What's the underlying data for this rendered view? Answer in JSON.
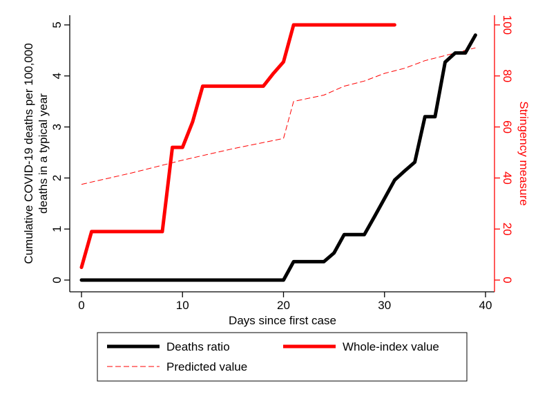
{
  "chart_data": {
    "type": "line",
    "xlabel": "Days since first case",
    "ylabel": "Cumulative COVID-19 deaths per 100,000 deaths in a typical year",
    "ylabel_lines": [
      "Cumulative COVID-19 deaths per 100,000",
      "deaths in a typical year"
    ],
    "y2label": "Stringency measure",
    "xlim": [
      0,
      40
    ],
    "ylim": [
      0,
      5
    ],
    "y2lim": [
      0,
      100
    ],
    "xticks": [
      "0",
      "10",
      "20",
      "30",
      "40"
    ],
    "yticks": [
      "0",
      "1",
      "2",
      "3",
      "4",
      "5"
    ],
    "y2ticks": [
      "0",
      "20",
      "40",
      "60",
      "80",
      "100"
    ],
    "grid": false,
    "legend_position": "bottom",
    "series": [
      {
        "name": "Deaths ratio",
        "axis": "left",
        "color": "#000000",
        "style": "solid-thick",
        "x": [
          0,
          20,
          21,
          22,
          23,
          24,
          25,
          26,
          27,
          28,
          29,
          30,
          31,
          32,
          33,
          34,
          35,
          36,
          37,
          38,
          39
        ],
        "y": [
          0,
          0,
          0.36,
          0.36,
          0.36,
          0.36,
          0.53,
          0.89,
          0.89,
          0.89,
          1.24,
          1.6,
          1.96,
          2.14,
          2.31,
          3.2,
          3.2,
          4.27,
          4.45,
          4.45,
          4.8
        ]
      },
      {
        "name": "Whole-index value",
        "axis": "right",
        "color": "#ff0000",
        "style": "solid-thick",
        "x": [
          0,
          1,
          2,
          3,
          4,
          5,
          6,
          7,
          8,
          9,
          10,
          11,
          12,
          13,
          14,
          15,
          16,
          17,
          18,
          19,
          20,
          21,
          22,
          23,
          24,
          25,
          26,
          27,
          28,
          29,
          30,
          31
        ],
        "y": [
          5,
          19,
          19,
          19,
          19,
          19,
          19,
          19,
          19,
          52,
          52,
          62,
          76,
          76,
          76,
          76,
          76,
          76,
          76,
          81,
          85.5,
          100,
          100,
          100,
          100,
          100,
          100,
          100,
          100,
          100,
          100,
          100
        ]
      },
      {
        "name": "Predicted value",
        "axis": "right",
        "color": "#ff0000",
        "style": "dashed-thin",
        "x": [
          0,
          5,
          10,
          15,
          20,
          21,
          24,
          26,
          28,
          30,
          32,
          34,
          36,
          38,
          39
        ],
        "y": [
          37.5,
          42,
          47,
          51.5,
          55.5,
          70,
          72.5,
          76,
          78,
          81,
          83,
          86,
          88,
          90,
          91
        ]
      }
    ]
  }
}
